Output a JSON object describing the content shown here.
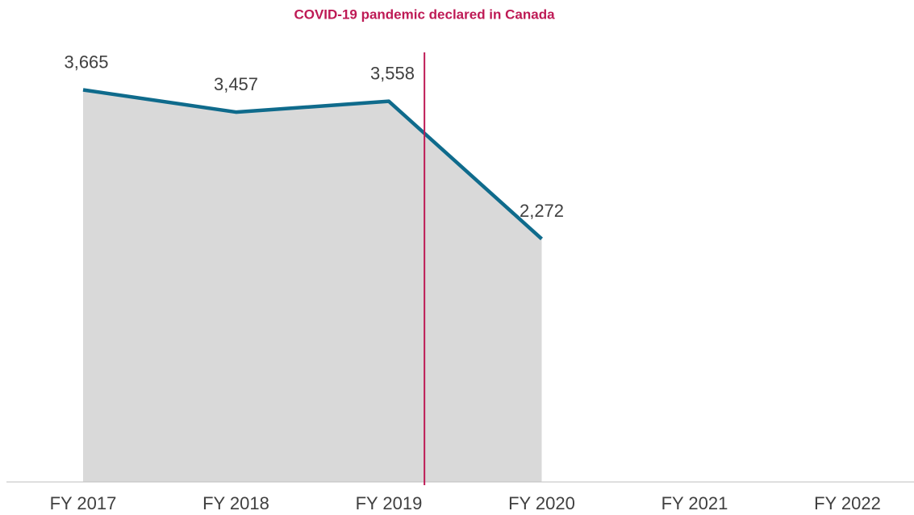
{
  "chart_data": {
    "type": "area",
    "title": "COVID-19 pandemic declared in Canada",
    "categories": [
      "FY 2017",
      "FY 2018",
      "FY 2019",
      "FY 2020",
      "FY 2021",
      "FY 2022"
    ],
    "values": [
      3665,
      3457,
      3558,
      2272,
      null,
      null
    ],
    "value_labels": [
      "3,665",
      "3,457",
      "3,558",
      "2,272",
      null,
      null
    ],
    "color": "#0f6b8c",
    "fill": "#d9d9d9",
    "annotation_color": "#be1a55",
    "ylim": [
      0,
      4000
    ]
  }
}
